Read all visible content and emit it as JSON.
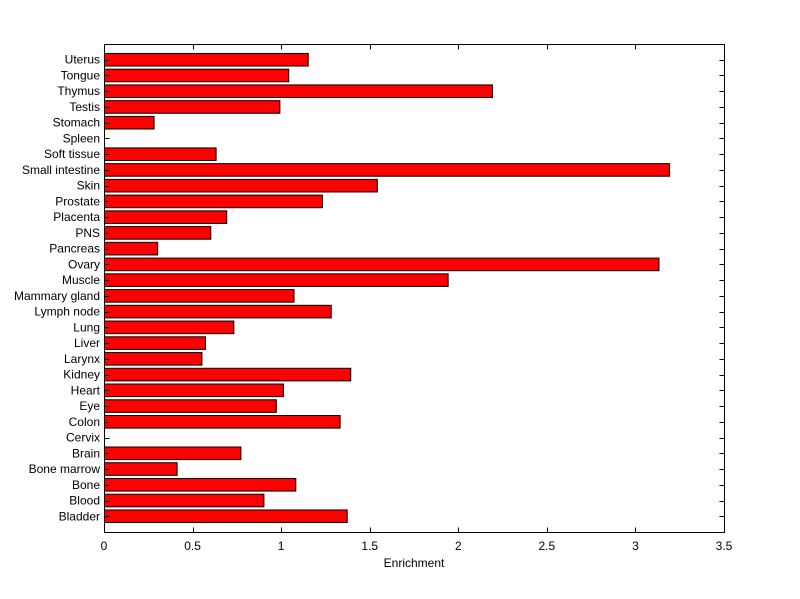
{
  "chart_data": {
    "type": "bar",
    "orientation": "horizontal",
    "categories": [
      "Bladder",
      "Blood",
      "Bone",
      "Bone marrow",
      "Brain",
      "Cervix",
      "Colon",
      "Eye",
      "Heart",
      "Kidney",
      "Larynx",
      "Liver",
      "Lung",
      "Lymph node",
      "Mammary gland",
      "Muscle",
      "Ovary",
      "Pancreas",
      "PNS",
      "Placenta",
      "Prostate",
      "Skin",
      "Small intestine",
      "Soft tissue",
      "Spleen",
      "Stomach",
      "Testis",
      "Thymus",
      "Tongue",
      "Uterus"
    ],
    "values": [
      1.37,
      0.9,
      1.08,
      0.41,
      0.77,
      0.0,
      1.33,
      0.97,
      1.01,
      1.39,
      0.55,
      0.57,
      0.73,
      1.28,
      1.07,
      1.94,
      3.13,
      0.3,
      0.6,
      0.69,
      1.23,
      1.54,
      3.19,
      0.63,
      0.0,
      0.28,
      0.99,
      2.19,
      1.04,
      1.15
    ],
    "xlabel": "Enrichment",
    "ylabel": "",
    "title": "",
    "xlim": [
      0,
      3.5
    ],
    "xticks": [
      0,
      0.5,
      1,
      1.5,
      2,
      2.5,
      3,
      3.5
    ],
    "xtick_labels": [
      "0",
      "0.5",
      "1",
      "1.5",
      "2",
      "2.5",
      "3",
      "3.5"
    ],
    "bar_color": "#ff0000",
    "edge_color": "#000000",
    "grid": false,
    "legend": "none"
  }
}
